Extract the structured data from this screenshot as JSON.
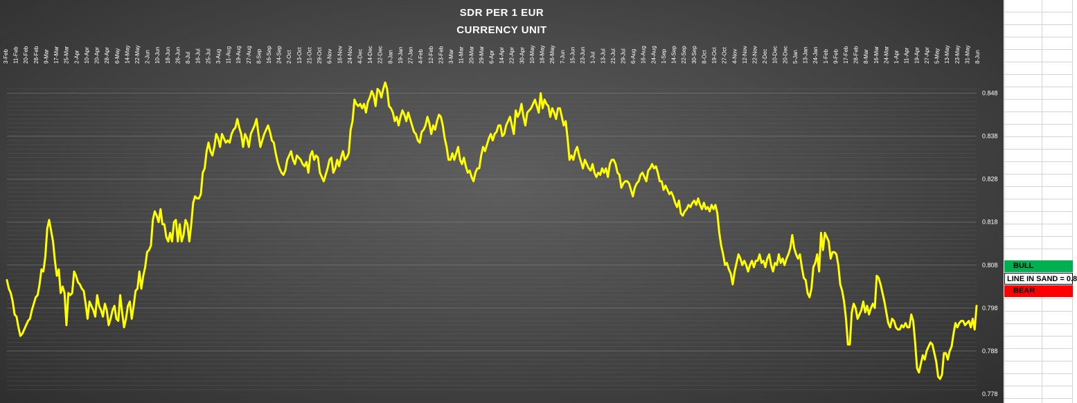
{
  "chart_data": {
    "type": "line",
    "title": "SDR PER 1 EUR",
    "subtitle": "CURRENCY UNIT",
    "x_tick_labels": [
      "3-Feb",
      "11-Feb",
      "20-Feb",
      "28-Feb",
      "9-Mar",
      "17-Mar",
      "25-Mar",
      "2-Apr",
      "10-Apr",
      "20-Apr",
      "28-Apr",
      "6-May",
      "14-May",
      "22-May",
      "2-Jun",
      "10-Jun",
      "18-Jun",
      "26-Jun",
      "8-Jul",
      "16-Jul",
      "25-Jul",
      "3-Aug",
      "11-Aug",
      "19-Aug",
      "27-Aug",
      "8-Sep",
      "16-Sep",
      "24-Sep",
      "2-Oct",
      "13-Oct",
      "21-Oct",
      "29-Oct",
      "6-Nov",
      "16-Nov",
      "24-Nov",
      "4-Dec",
      "14-Dec",
      "22-Dec",
      "8-Jan",
      "19-Jan",
      "27-Jan",
      "4-Feb",
      "12-Feb",
      "23-Feb",
      "3-Mar",
      "11-Mar",
      "20-Mar",
      "29-Mar",
      "6-Apr",
      "14-Apr",
      "22-Apr",
      "30-Apr",
      "10-May",
      "18-May",
      "26-May",
      "7-Jun",
      "15-Jun",
      "23-Jun",
      "1-Jul",
      "13-Jul",
      "21-Jul",
      "29-Jul",
      "6-Aug",
      "16-Aug",
      "24-Aug",
      "1-Sep",
      "14-Sep",
      "22-Sep",
      "30-Sep",
      "8-Oct",
      "19-Oct",
      "27-Oct",
      "4-Nov",
      "12-Nov",
      "22-Nov",
      "2-Dec",
      "10-Dec",
      "20-Dec",
      "5-Jan",
      "13-Jan",
      "24-Jan",
      "1-Feb",
      "9-Feb",
      "17-Feb",
      "28-Feb",
      "8-Mar",
      "16-Mar",
      "24-Mar",
      "1-Apr",
      "11-Apr",
      "19-Apr",
      "27-Apr",
      "5-May",
      "13-May",
      "23-May",
      "31-May",
      "8-Jun"
    ],
    "y_ticks": [
      0.778,
      0.788,
      0.798,
      0.808,
      0.818,
      0.828,
      0.838,
      0.848
    ],
    "ylim": [
      0.7775,
      0.851
    ],
    "y_axis_side": "right",
    "grid": true,
    "line_color": "#ffff00",
    "series": [
      {
        "values": [
          0.8045,
          0.8025,
          0.8015,
          0.7995,
          0.7965,
          0.796,
          0.7935,
          0.7915,
          0.792,
          0.793,
          0.794,
          0.795,
          0.7955,
          0.7975,
          0.799,
          0.8005,
          0.801,
          0.8035,
          0.807,
          0.8065,
          0.81,
          0.8165,
          0.8185,
          0.816,
          0.8135,
          0.809,
          0.8055,
          0.807,
          0.8015,
          0.803,
          0.8015,
          0.794,
          0.8015,
          0.801,
          0.8015,
          0.8065,
          0.8055,
          0.804,
          0.8035,
          0.8025,
          0.802,
          0.799,
          0.7955,
          0.7995,
          0.7985,
          0.7975,
          0.796,
          0.801,
          0.7985,
          0.7975,
          0.796,
          0.799,
          0.7975,
          0.794,
          0.7955,
          0.7975,
          0.7985,
          0.7955,
          0.795,
          0.801,
          0.797,
          0.7935,
          0.7955,
          0.7985,
          0.7995,
          0.7955,
          0.7985,
          0.802,
          0.8025,
          0.8065,
          0.8025,
          0.8055,
          0.8075,
          0.811,
          0.8115,
          0.8125,
          0.8185,
          0.8205,
          0.8195,
          0.818,
          0.821,
          0.8175,
          0.8175,
          0.8145,
          0.8135,
          0.8155,
          0.8135,
          0.818,
          0.8185,
          0.8135,
          0.8175,
          0.8135,
          0.815,
          0.8185,
          0.8175,
          0.8135,
          0.8175,
          0.8225,
          0.824,
          0.8235,
          0.8235,
          0.8245,
          0.8295,
          0.8305,
          0.8345,
          0.8365,
          0.8345,
          0.8335,
          0.8355,
          0.8385,
          0.8375,
          0.8355,
          0.8385,
          0.8375,
          0.8365,
          0.837,
          0.8365,
          0.8385,
          0.8395,
          0.84,
          0.842,
          0.84,
          0.8385,
          0.8355,
          0.8385,
          0.8375,
          0.8355,
          0.8385,
          0.8395,
          0.8405,
          0.842,
          0.8385,
          0.8355,
          0.837,
          0.8385,
          0.8395,
          0.8405,
          0.839,
          0.837,
          0.8365,
          0.834,
          0.832,
          0.8305,
          0.8295,
          0.829,
          0.83,
          0.8325,
          0.8335,
          0.8345,
          0.8325,
          0.8315,
          0.8335,
          0.833,
          0.8325,
          0.8315,
          0.831,
          0.832,
          0.8295,
          0.8335,
          0.8345,
          0.8325,
          0.8335,
          0.833,
          0.8295,
          0.8285,
          0.8275,
          0.829,
          0.8305,
          0.8325,
          0.833,
          0.8295,
          0.8305,
          0.8325,
          0.831,
          0.833,
          0.8345,
          0.8325,
          0.833,
          0.834,
          0.8395,
          0.8415,
          0.8465,
          0.8455,
          0.845,
          0.8455,
          0.8445,
          0.8455,
          0.8435,
          0.846,
          0.847,
          0.8485,
          0.8475,
          0.845,
          0.849,
          0.8485,
          0.847,
          0.849,
          0.8505,
          0.849,
          0.845,
          0.8445,
          0.8435,
          0.8415,
          0.8425,
          0.8405,
          0.8425,
          0.844,
          0.843,
          0.8415,
          0.8435,
          0.842,
          0.8405,
          0.839,
          0.8385,
          0.837,
          0.8365,
          0.839,
          0.8395,
          0.8405,
          0.8425,
          0.841,
          0.8385,
          0.8405,
          0.8395,
          0.8415,
          0.843,
          0.8425,
          0.8405,
          0.8375,
          0.8355,
          0.8325,
          0.8325,
          0.834,
          0.8325,
          0.834,
          0.8355,
          0.8325,
          0.8315,
          0.833,
          0.831,
          0.8295,
          0.83,
          0.8285,
          0.8275,
          0.8295,
          0.8305,
          0.8305,
          0.8335,
          0.8355,
          0.8345,
          0.836,
          0.8375,
          0.8385,
          0.837,
          0.8385,
          0.839,
          0.8405,
          0.8405,
          0.838,
          0.8385,
          0.8405,
          0.8415,
          0.8425,
          0.8405,
          0.8385,
          0.844,
          0.8425,
          0.8435,
          0.8455,
          0.8425,
          0.8405,
          0.8435,
          0.844,
          0.8445,
          0.8455,
          0.8465,
          0.845,
          0.8435,
          0.848,
          0.8445,
          0.8465,
          0.8455,
          0.845,
          0.8425,
          0.8445,
          0.8435,
          0.842,
          0.8445,
          0.8445,
          0.8425,
          0.8405,
          0.8415,
          0.8375,
          0.8325,
          0.8335,
          0.8325,
          0.8345,
          0.8355,
          0.8335,
          0.832,
          0.8305,
          0.8325,
          0.8315,
          0.8305,
          0.83,
          0.8315,
          0.8295,
          0.8285,
          0.8295,
          0.829,
          0.8305,
          0.8295,
          0.8305,
          0.8285,
          0.8315,
          0.8325,
          0.8325,
          0.8315,
          0.8295,
          0.829,
          0.826,
          0.827,
          0.8275,
          0.8275,
          0.827,
          0.8255,
          0.824,
          0.826,
          0.827,
          0.8275,
          0.829,
          0.8295,
          0.8285,
          0.8275,
          0.83,
          0.8305,
          0.8315,
          0.8305,
          0.831,
          0.8295,
          0.8275,
          0.8275,
          0.8255,
          0.8265,
          0.8255,
          0.8245,
          0.825,
          0.824,
          0.8225,
          0.8215,
          0.823,
          0.82,
          0.8195,
          0.8205,
          0.821,
          0.822,
          0.8215,
          0.8225,
          0.823,
          0.822,
          0.8235,
          0.822,
          0.821,
          0.8225,
          0.821,
          0.8215,
          0.8205,
          0.822,
          0.821,
          0.822,
          0.82,
          0.8155,
          0.8125,
          0.8105,
          0.808,
          0.8085,
          0.807,
          0.806,
          0.8035,
          0.8065,
          0.8085,
          0.8105,
          0.8095,
          0.808,
          0.809,
          0.808,
          0.8065,
          0.808,
          0.809,
          0.8075,
          0.809,
          0.809,
          0.8105,
          0.8085,
          0.809,
          0.8075,
          0.8095,
          0.8105,
          0.808,
          0.8065,
          0.8085,
          0.808,
          0.8105,
          0.8085,
          0.8095,
          0.808,
          0.8095,
          0.8105,
          0.812,
          0.815,
          0.812,
          0.8105,
          0.8095,
          0.8105,
          0.8075,
          0.805,
          0.8045,
          0.8015,
          0.8005,
          0.8025,
          0.8075,
          0.8085,
          0.8105,
          0.8065,
          0.8155,
          0.8115,
          0.8155,
          0.8145,
          0.8135,
          0.8095,
          0.811,
          0.811,
          0.8105,
          0.808,
          0.8035,
          0.802,
          0.7995,
          0.7955,
          0.7895,
          0.7895,
          0.797,
          0.799,
          0.798,
          0.7955,
          0.7965,
          0.7975,
          0.7995,
          0.797,
          0.7985,
          0.7965,
          0.798,
          0.799,
          0.798,
          0.8055,
          0.805,
          0.8035,
          0.8015,
          0.7995,
          0.797,
          0.7945,
          0.7935,
          0.7955,
          0.795,
          0.7935,
          0.793,
          0.793,
          0.794,
          0.7935,
          0.7945,
          0.7935,
          0.7935,
          0.7965,
          0.795,
          0.79,
          0.784,
          0.783,
          0.785,
          0.787,
          0.786,
          0.788,
          0.789,
          0.79,
          0.7895,
          0.7875,
          0.7855,
          0.782,
          0.7815,
          0.7825,
          0.7875,
          0.7875,
          0.786,
          0.788,
          0.789,
          0.792,
          0.7945,
          0.7935,
          0.7945,
          0.795,
          0.795,
          0.794,
          0.7945,
          0.795,
          0.7935,
          0.7955,
          0.793,
          0.7985
        ]
      }
    ]
  },
  "sheet": {
    "bull_label": "BULL",
    "line_label": "LINE IN SAND = 0.8",
    "bear_label": "BEAR",
    "bull_color": "#00b050",
    "bear_color": "#ff0000"
  }
}
